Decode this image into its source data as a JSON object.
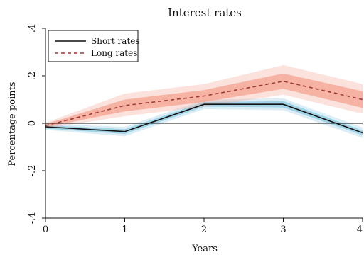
{
  "chart_data": {
    "type": "line",
    "title": "Interest rates",
    "xlabel": "Years",
    "ylabel": "Percentage points",
    "x": [
      0,
      1,
      2,
      3,
      4
    ],
    "xticks": [
      "0",
      "1",
      "2",
      "3",
      "4"
    ],
    "yticks": [
      {
        "value": -0.4,
        "label": "-.4"
      },
      {
        "value": -0.2,
        "label": "-.2"
      },
      {
        "value": 0,
        "label": "0"
      },
      {
        "value": 0.2,
        "label": ".2"
      },
      {
        "value": 0.4,
        "label": ".4"
      }
    ],
    "xlim": [
      0,
      4
    ],
    "ylim": [
      -0.4,
      0.4
    ],
    "grid": false,
    "zero_line": true,
    "legend_position": "top-left",
    "series": [
      {
        "name": "Short rates",
        "style": "solid",
        "color": "#111111",
        "band_color": "#87c8e0",
        "values": [
          -0.015,
          -0.035,
          0.08,
          0.08,
          -0.04
        ],
        "inner_lower": [
          -0.022,
          -0.045,
          0.07,
          0.067,
          -0.05
        ],
        "inner_upper": [
          -0.008,
          -0.025,
          0.09,
          0.093,
          -0.03
        ],
        "outer_lower": [
          -0.028,
          -0.055,
          0.06,
          0.055,
          -0.062
        ],
        "outer_upper": [
          -0.002,
          -0.015,
          0.1,
          0.105,
          -0.018
        ]
      },
      {
        "name": "Long rates",
        "style": "dashed",
        "color": "#9e3a3a",
        "band_color": "#f4a08a",
        "values": [
          -0.01,
          0.075,
          0.115,
          0.177,
          0.1
        ],
        "inner_lower": [
          -0.016,
          0.05,
          0.09,
          0.145,
          0.065
        ],
        "inner_upper": [
          -0.004,
          0.1,
          0.14,
          0.21,
          0.135
        ],
        "outer_lower": [
          -0.022,
          0.03,
          0.07,
          0.12,
          0.04
        ],
        "outer_upper": [
          0.002,
          0.125,
          0.165,
          0.245,
          0.165
        ]
      }
    ]
  }
}
